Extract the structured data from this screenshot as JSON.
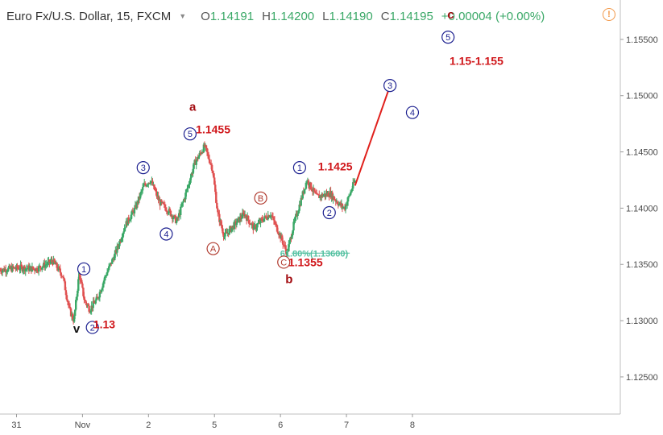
{
  "header": {
    "symbol": "Euro Fx/U.S. Dollar, 15, FXCM",
    "open_label": "O",
    "open": "1.14191",
    "high_label": "H",
    "high": "1.14200",
    "low_label": "L",
    "low": "1.14190",
    "close_label": "C",
    "close": "1.14195",
    "change": "+0.00004 (+0.00%)",
    "warning_glyph": "!"
  },
  "colors": {
    "up": "#3aa867",
    "down": "#e05151",
    "wave_blue": "#1b1f8f",
    "wave_brown": "#b03a2e",
    "annotation_red": "#d0171b",
    "fib": "#52c0a0"
  },
  "chart_data": {
    "type": "candlestick",
    "ylim": [
      1.1217,
      1.1585
    ],
    "xlim": [
      0,
      9.4
    ],
    "y_ticks": [
      "1.15500",
      "1.15000",
      "1.14500",
      "1.14000",
      "1.13500",
      "1.13000",
      "1.12500"
    ],
    "x_ticks": [
      {
        "label": "31",
        "x": 0.25
      },
      {
        "label": "Nov",
        "x": 1.25
      },
      {
        "label": "2",
        "x": 2.25
      },
      {
        "label": "5",
        "x": 3.25
      },
      {
        "label": "6",
        "x": 4.25
      },
      {
        "label": "7",
        "x": 5.25
      },
      {
        "label": "8",
        "x": 6.25
      }
    ],
    "price_path": [
      [
        0.0,
        1.1345
      ],
      [
        0.3,
        1.1347
      ],
      [
        0.55,
        1.1346
      ],
      [
        0.8,
        1.1353
      ],
      [
        0.95,
        1.134
      ],
      [
        1.05,
        1.131
      ],
      [
        1.12,
        1.13
      ],
      [
        1.2,
        1.1342
      ],
      [
        1.28,
        1.1318
      ],
      [
        1.36,
        1.131
      ],
      [
        1.48,
        1.132
      ],
      [
        1.6,
        1.134
      ],
      [
        1.75,
        1.136
      ],
      [
        1.9,
        1.1385
      ],
      [
        2.05,
        1.14
      ],
      [
        2.18,
        1.142
      ],
      [
        2.28,
        1.1425
      ],
      [
        2.42,
        1.1405
      ],
      [
        2.55,
        1.1398
      ],
      [
        2.68,
        1.1388
      ],
      [
        2.8,
        1.141
      ],
      [
        2.95,
        1.144
      ],
      [
        3.1,
        1.1455
      ],
      [
        3.22,
        1.1435
      ],
      [
        3.3,
        1.1395
      ],
      [
        3.4,
        1.1375
      ],
      [
        3.55,
        1.1385
      ],
      [
        3.7,
        1.1395
      ],
      [
        3.85,
        1.1382
      ],
      [
        3.98,
        1.139
      ],
      [
        4.1,
        1.1395
      ],
      [
        4.25,
        1.1375
      ],
      [
        4.35,
        1.136
      ],
      [
        4.45,
        1.1385
      ],
      [
        4.55,
        1.1405
      ],
      [
        4.65,
        1.1425
      ],
      [
        4.8,
        1.141
      ],
      [
        5.0,
        1.1413
      ],
      [
        5.15,
        1.1403
      ],
      [
        5.22,
        1.14
      ],
      [
        5.3,
        1.1412
      ],
      [
        5.38,
        1.1425
      ]
    ],
    "projection_line": [
      [
        5.38,
        1.142
      ],
      [
        5.9,
        1.1507
      ]
    ],
    "fib_level": {
      "label": "61.80%(1.13600)",
      "y": 1.136,
      "x_from": 4.42,
      "x_to": 5.3
    },
    "wave_labels": [
      {
        "text": "1",
        "style": "circle-blue",
        "x": 1.27,
        "y": 1.1346
      },
      {
        "text": "2",
        "style": "circle-blue",
        "x": 1.4,
        "y": 1.1294
      },
      {
        "text": "v",
        "style": "plain-dark",
        "x": 1.16,
        "y": 1.1293
      },
      {
        "text": "3",
        "style": "circle-blue",
        "x": 2.17,
        "y": 1.1436
      },
      {
        "text": "4",
        "style": "circle-blue",
        "x": 2.52,
        "y": 1.1377
      },
      {
        "text": "5",
        "style": "circle-blue",
        "x": 2.88,
        "y": 1.1466
      },
      {
        "text": "a",
        "style": "plain-red",
        "x": 2.92,
        "y": 1.149
      },
      {
        "text": "A",
        "style": "circle-brown",
        "x": 3.23,
        "y": 1.1364
      },
      {
        "text": "B",
        "style": "circle-brown",
        "x": 3.95,
        "y": 1.1409
      },
      {
        "text": "C",
        "style": "circle-brown",
        "x": 4.3,
        "y": 1.1352
      },
      {
        "text": "b",
        "style": "plain-red",
        "x": 4.38,
        "y": 1.1337
      },
      {
        "text": "1",
        "style": "circle-blue",
        "x": 4.54,
        "y": 1.1436
      },
      {
        "text": "2",
        "style": "circle-blue",
        "x": 4.99,
        "y": 1.1396
      },
      {
        "text": "3",
        "style": "circle-blue",
        "x": 5.91,
        "y": 1.1509
      },
      {
        "text": "4",
        "style": "circle-blue",
        "x": 6.25,
        "y": 1.1485
      },
      {
        "text": "5",
        "style": "circle-blue",
        "x": 6.79,
        "y": 1.1552
      },
      {
        "text": "c",
        "style": "plain-red",
        "x": 6.83,
        "y": 1.1572
      }
    ],
    "price_annotations": [
      {
        "text": "1.13",
        "x": 1.58,
        "y": 1.1297
      },
      {
        "text": "1.1455",
        "x": 3.23,
        "y": 1.147
      },
      {
        "text": "1.1355",
        "x": 4.63,
        "y": 1.1352
      },
      {
        "text": "1.1425",
        "x": 5.08,
        "y": 1.1437
      },
      {
        "text": "1.15-1.155",
        "x": 7.22,
        "y": 1.1531
      }
    ]
  }
}
